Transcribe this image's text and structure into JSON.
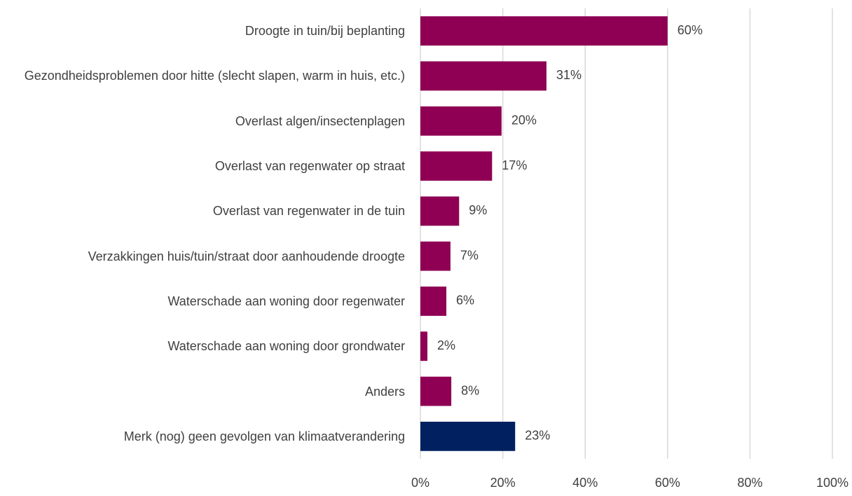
{
  "chart_data": {
    "type": "bar",
    "orientation": "horizontal",
    "categories": [
      "Droogte in tuin/bij beplanting",
      "Gezondheidsproblemen door hitte (slecht slapen, warm in huis, etc.)",
      "Overlast algen/insectenplagen",
      "Overlast van regenwater op straat",
      "Overlast van regenwater in de tuin",
      "Verzakkingen huis/tuin/straat door aanhoudende droogte",
      "Waterschade aan woning door regenwater",
      "Waterschade aan woning door grondwater",
      "Anders",
      "Merk (nog) geen gevolgen van klimaatverandering"
    ],
    "values": [
      60,
      30.6,
      19.7,
      17.4,
      9.4,
      7.3,
      6.3,
      1.7,
      7.5,
      23
    ],
    "value_labels": [
      "60%",
      "31%",
      "20%",
      "17%",
      "9%",
      "7%",
      "6%",
      "2%",
      "8%",
      "23%"
    ],
    "colors": [
      "#8f0054",
      "#8f0054",
      "#8f0054",
      "#8f0054",
      "#8f0054",
      "#8f0054",
      "#8f0054",
      "#8f0054",
      "#8f0054",
      "#002060"
    ],
    "xlim": [
      0,
      100
    ],
    "xticks": [
      {
        "value": 0,
        "label": "0%"
      },
      {
        "value": 20,
        "label": "20%"
      },
      {
        "value": 40,
        "label": "40%"
      },
      {
        "value": 60,
        "label": "60%"
      },
      {
        "value": 80,
        "label": "80%"
      },
      {
        "value": 100,
        "label": "100%"
      }
    ],
    "grid": true
  }
}
